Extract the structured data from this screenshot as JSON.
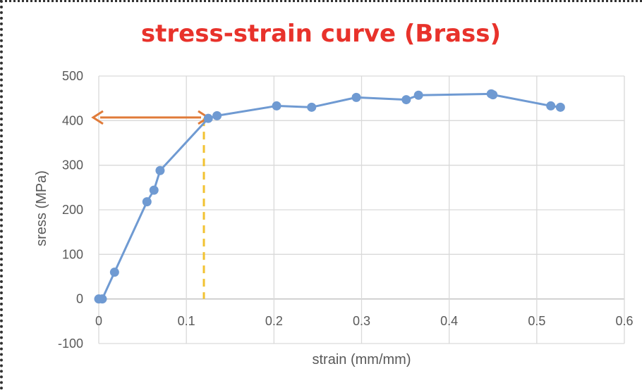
{
  "chart_data": {
    "type": "scatter",
    "title": "stress-strain curve (Brass)",
    "xlabel": "strain (mm/mm)",
    "ylabel": "sress (MPa)",
    "xlim": [
      0,
      0.6
    ],
    "ylim": [
      -100,
      500
    ],
    "x_ticks": [
      "0",
      "0.1",
      "0.2",
      "0.3",
      "0.4",
      "0.5",
      "0.6"
    ],
    "y_ticks": [
      "500",
      "400",
      "300",
      "200",
      "100",
      "0",
      "-100"
    ],
    "grid": true,
    "series": [
      {
        "x": [
          0.0,
          0.004,
          0.018,
          0.055,
          0.063,
          0.07,
          0.125,
          0.135,
          0.203,
          0.243,
          0.294,
          0.351,
          0.365,
          0.448,
          0.45,
          0.516,
          0.527
        ],
        "y": [
          0,
          0,
          60,
          218,
          244,
          288,
          405,
          411,
          433,
          430,
          452,
          447,
          457,
          460,
          458,
          433,
          430
        ]
      }
    ],
    "annotations": {
      "yield_arrow": {
        "x_from": 0.0,
        "x_to": 0.12,
        "y": 407
      },
      "yield_dashed_line": {
        "x": 0.12,
        "y_from": 0,
        "y_to": 405
      }
    },
    "colors": {
      "title": "#e8322b",
      "series": "#6f9ad2",
      "arrow": "#e07b39",
      "dashed": "#f2c230",
      "grid": "#d9d9d9"
    }
  }
}
